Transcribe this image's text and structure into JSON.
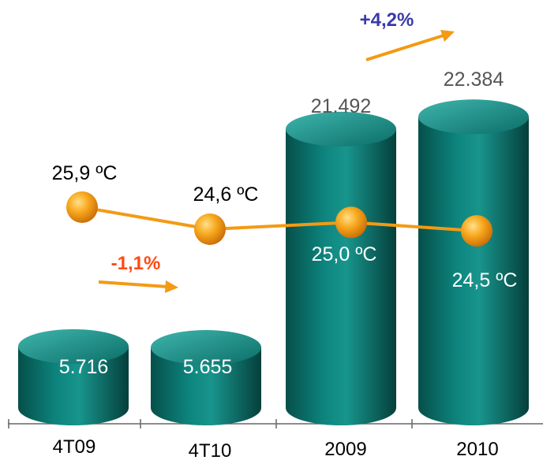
{
  "chart_data": {
    "type": "bar",
    "categories": [
      "4T09",
      "4T10",
      "2009",
      "2010"
    ],
    "series": [
      {
        "values": [
          5716,
          5655,
          21492,
          22384
        ],
        "labels": [
          "5.716",
          "5.655",
          "21.492",
          "22.384"
        ]
      },
      {
        "type": "line",
        "values": [
          25.9,
          24.6,
          25.0,
          24.5
        ],
        "labels": [
          "25,9 ºC",
          "24,6 ºC",
          "25,0 ºC",
          "24,5 ºC"
        ]
      }
    ],
    "annotations": [
      {
        "text": "-1,1%",
        "from": "4T09",
        "to": "4T10"
      },
      {
        "text": "+4,2%",
        "from": "2009",
        "to": "2010"
      }
    ],
    "title": "",
    "xlabel": "",
    "ylabel": ""
  },
  "colors": {
    "bar_body": "#0c7a74",
    "bar_dark": "#054a45",
    "bar_light": "#2aa29a",
    "line": "#f39a14",
    "marker": "#f5a21a",
    "negative_label": "#ff4a14",
    "positive_label": "#3a3aa8",
    "value_label": "#555555"
  }
}
